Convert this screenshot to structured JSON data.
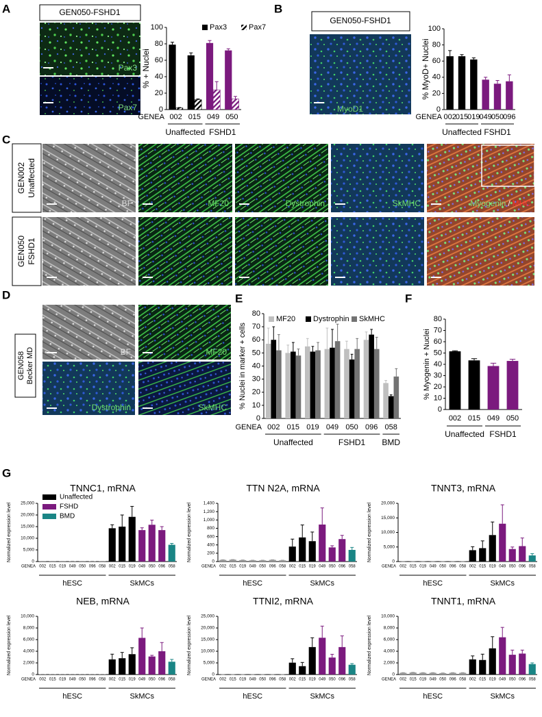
{
  "panels": {
    "A": {
      "letter": "A",
      "title": "GEN050-FSHD1",
      "images": [
        "Pax3",
        "Pax7"
      ]
    },
    "B": {
      "letter": "B",
      "title": "GEN050-FSHD1",
      "images": [
        "MyoD1"
      ]
    },
    "C": {
      "letter": "C",
      "rows": [
        [
          "GEN002",
          "Unaffected"
        ],
        [
          "GEN050",
          "FSHD1"
        ]
      ],
      "columns": [
        "BF",
        "MF20",
        "Dystrophin",
        "SkMHC"
      ],
      "merge_label": [
        "Myogenin",
        "/",
        "MHC"
      ]
    },
    "D": {
      "letter": "D",
      "row_label": [
        "GEN058",
        "Becker MD"
      ],
      "images": [
        "BF",
        "MF20",
        "Dystrophin",
        "SkMHC"
      ]
    },
    "E": {
      "letter": "E"
    },
    "F": {
      "letter": "F"
    },
    "G": {
      "letter": "G"
    }
  },
  "chart_data": [
    {
      "type": "bar",
      "ylabel": "% + Nuclei",
      "xlabel": "GENEA",
      "categories": [
        "002",
        "015",
        "049",
        "050"
      ],
      "series": [
        {
          "name": "Pax3",
          "values": [
            79,
            66,
            81,
            72
          ],
          "errors": [
            3,
            3,
            3,
            2
          ],
          "colors": [
            "#000000",
            "#000000",
            "#7b1a7e",
            "#7b1a7e"
          ]
        },
        {
          "name": "Pax7",
          "pattern": "hatch",
          "values": [
            2,
            12,
            24,
            13
          ],
          "errors": [
            0.5,
            1,
            10,
            3
          ],
          "colors": [
            "#000000",
            "#000000",
            "#7b1a7e",
            "#7b1a7e"
          ]
        }
      ],
      "ylim": [
        0,
        100
      ],
      "yticks": [
        0,
        20,
        40,
        60,
        80,
        100
      ],
      "groups": [
        "Unaffected",
        "FSHD1"
      ]
    },
    {
      "type": "bar",
      "ylabel": "% MyoD+ Nuclei",
      "xlabel": "GENEA",
      "categories": [
        "002",
        "015",
        "019",
        "049",
        "050",
        "096"
      ],
      "series": [
        {
          "values": [
            66,
            66,
            62,
            37,
            32,
            35
          ],
          "errors": [
            7,
            2,
            2,
            3,
            4,
            8
          ],
          "colors": [
            "#000000",
            "#000000",
            "#000000",
            "#7b1a7e",
            "#7b1a7e",
            "#7b1a7e"
          ]
        }
      ],
      "ylim": [
        0,
        100
      ],
      "yticks": [
        0,
        20,
        40,
        60,
        80,
        100
      ],
      "groups": [
        "Unaffected",
        "FSHD1"
      ]
    },
    {
      "type": "bar",
      "ylabel": "% Nuclei in marker + cells",
      "xlabel": "GENEA",
      "categories": [
        "002",
        "015",
        "019",
        "049",
        "050",
        "096",
        "058"
      ],
      "series": [
        {
          "name": "MF20",
          "color": "#bfbfbf",
          "values": [
            57,
            50,
            55,
            53,
            53,
            60,
            27
          ],
          "errors": [
            12,
            6,
            6,
            16,
            6,
            6,
            2
          ]
        },
        {
          "name": "Dystrophin",
          "color": "#000000",
          "values": [
            60,
            51,
            51,
            54,
            45,
            64,
            17
          ],
          "errors": [
            10,
            7,
            4,
            14,
            4,
            4,
            1
          ]
        },
        {
          "name": "SkMHC",
          "color": "#737373",
          "values": [
            52,
            48,
            52,
            59,
            53,
            53,
            32
          ],
          "errors": [
            12,
            5,
            6,
            13,
            8,
            9,
            6
          ]
        }
      ],
      "ylim": [
        0,
        80
      ],
      "yticks": [
        0,
        10,
        20,
        30,
        40,
        50,
        60,
        70,
        80
      ],
      "groups": [
        "Unaffected",
        "FSHD1",
        "BMD"
      ]
    },
    {
      "type": "bar",
      "ylabel": "% Myogenin + Nuclei",
      "categories": [
        "002",
        "015",
        "049",
        "050"
      ],
      "series": [
        {
          "values": [
            51.5,
            43.5,
            38.5,
            43
          ],
          "errors": [
            0.5,
            1.5,
            2.5,
            1.5
          ],
          "colors": [
            "#000000",
            "#000000",
            "#7b1a7e",
            "#7b1a7e"
          ]
        }
      ],
      "ylim": [
        0,
        80
      ],
      "yticks": [
        0,
        10,
        20,
        30,
        40,
        50,
        60,
        70,
        80
      ],
      "groups": [
        "Unaffected",
        "FSHD1"
      ]
    },
    {
      "type": "bar",
      "title": "TNNC1, mRNA",
      "ylabel": "Normalized expression level",
      "xlabel": "GENEA",
      "categories": [
        "002",
        "015",
        "019",
        "049",
        "050",
        "096",
        "058",
        "002",
        "015",
        "019",
        "049",
        "050",
        "096",
        "058"
      ],
      "series": [
        {
          "values": [
            100,
            100,
            100,
            150,
            100,
            150,
            100,
            14300,
            15000,
            19200,
            13500,
            15800,
            13500,
            7200
          ],
          "errors": [
            20,
            20,
            20,
            20,
            20,
            20,
            20,
            1500,
            5000,
            4500,
            1000,
            2000,
            1500,
            600
          ],
          "colors": [
            "#999999",
            "#999999",
            "#999999",
            "#999999",
            "#999999",
            "#999999",
            "#999999",
            "#000000",
            "#000000",
            "#000000",
            "#7b1a7e",
            "#7b1a7e",
            "#7b1a7e",
            "#1a8585"
          ]
        }
      ],
      "ylim": [
        0,
        25000
      ],
      "yticks": [
        0,
        {
          "value": 5000,
          "label": "5,000"
        },
        {
          "value": 10000,
          "label": "10,000"
        },
        {
          "value": 15000,
          "label": "15,000"
        },
        {
          "value": 20000,
          "label": "20,000"
        },
        {
          "value": 25000,
          "label": "25,000"
        }
      ],
      "groups": [
        "hESC",
        "SkMCs"
      ],
      "legend": [
        {
          "name": "Unaffected",
          "color": "#000000"
        },
        {
          "name": "FSHD",
          "color": "#7b1a7e"
        },
        {
          "name": "BMD",
          "color": "#1a8585"
        }
      ]
    },
    {
      "type": "bar",
      "title": "TTN N2A, mRNA",
      "ylabel": "Normalized expression level",
      "xlabel": "GENEA",
      "categories": [
        "002",
        "015",
        "019",
        "049",
        "050",
        "096",
        "058",
        "002",
        "015",
        "019",
        "049",
        "050",
        "096",
        "058"
      ],
      "series": [
        {
          "values": [
            40,
            45,
            35,
            30,
            30,
            40,
            30,
            360,
            580,
            490,
            890,
            340,
            540,
            280
          ],
          "errors": [
            3,
            3,
            3,
            3,
            3,
            3,
            3,
            180,
            300,
            220,
            400,
            40,
            90,
            60
          ],
          "colors": [
            "#999999",
            "#999999",
            "#999999",
            "#999999",
            "#999999",
            "#999999",
            "#999999",
            "#000000",
            "#000000",
            "#000000",
            "#7b1a7e",
            "#7b1a7e",
            "#7b1a7e",
            "#1a8585"
          ]
        }
      ],
      "ylim": [
        0,
        1400
      ],
      "yticks": [
        0,
        200,
        400,
        600,
        800,
        {
          "value": 1000,
          "label": "1,000"
        },
        {
          "value": 1200,
          "label": "1,200"
        },
        {
          "value": 1400,
          "label": "1,400"
        }
      ],
      "groups": [
        "hESC",
        "SkMCs"
      ]
    },
    {
      "type": "bar",
      "title": "TNNT3, mRNA",
      "ylabel": "Normalized expression level",
      "xlabel": "GENEA",
      "categories": [
        "002",
        "015",
        "019",
        "049",
        "050",
        "096",
        "058",
        "002",
        "015",
        "019",
        "049",
        "050",
        "096",
        "058"
      ],
      "series": [
        {
          "values": [
            50,
            50,
            50,
            50,
            50,
            50,
            50,
            3900,
            4600,
            9100,
            13000,
            4300,
            5300,
            2100
          ],
          "errors": [
            10,
            10,
            10,
            10,
            10,
            10,
            10,
            1200,
            2500,
            4500,
            6500,
            700,
            2800,
            600
          ],
          "colors": [
            "#999999",
            "#999999",
            "#999999",
            "#999999",
            "#999999",
            "#999999",
            "#999999",
            "#000000",
            "#000000",
            "#000000",
            "#7b1a7e",
            "#7b1a7e",
            "#7b1a7e",
            "#1a8585"
          ]
        }
      ],
      "ylim": [
        0,
        20000
      ],
      "yticks": [
        0,
        {
          "value": 5000,
          "label": "5,000"
        },
        {
          "value": 10000,
          "label": "10,000"
        },
        {
          "value": 15000,
          "label": "15,000"
        },
        {
          "value": 20000,
          "label": "20,000"
        }
      ],
      "groups": [
        "hESC",
        "SkMCs"
      ]
    },
    {
      "type": "bar",
      "title": "NEB, mRNA",
      "ylabel": "Normalized expression level",
      "xlabel": "GENEA",
      "categories": [
        "002",
        "015",
        "019",
        "049",
        "050",
        "096",
        "058",
        "002",
        "015",
        "019",
        "049",
        "050",
        "096",
        "058"
      ],
      "series": [
        {
          "values": [
            50,
            50,
            50,
            50,
            50,
            50,
            50,
            2600,
            2800,
            3500,
            6300,
            3100,
            4000,
            2200
          ],
          "errors": [
            10,
            10,
            10,
            10,
            10,
            10,
            10,
            900,
            1000,
            1100,
            1700,
            200,
            1500,
            400
          ],
          "colors": [
            "#999999",
            "#999999",
            "#999999",
            "#999999",
            "#999999",
            "#999999",
            "#999999",
            "#000000",
            "#000000",
            "#000000",
            "#7b1a7e",
            "#7b1a7e",
            "#7b1a7e",
            "#1a8585"
          ]
        }
      ],
      "ylim": [
        0,
        10000
      ],
      "yticks": [
        0,
        {
          "value": 2000,
          "label": "2,000"
        },
        {
          "value": 4000,
          "label": "4,000"
        },
        {
          "value": 6000,
          "label": "6,000"
        },
        {
          "value": 8000,
          "label": "8,000"
        },
        {
          "value": 10000,
          "label": "10,000"
        }
      ],
      "groups": [
        "hESC",
        "SkMCs"
      ]
    },
    {
      "type": "bar",
      "title": "TTNI2, mRNA",
      "ylabel": "Normalized expression level",
      "xlabel": "GENEA",
      "categories": [
        "002",
        "015",
        "019",
        "049",
        "050",
        "096",
        "058",
        "002",
        "015",
        "019",
        "049",
        "050",
        "096",
        "058"
      ],
      "series": [
        {
          "values": [
            50,
            50,
            50,
            50,
            50,
            50,
            50,
            5100,
            3600,
            11800,
            15800,
            7300,
            11800,
            4200
          ],
          "errors": [
            10,
            10,
            10,
            10,
            10,
            10,
            10,
            1700,
            1600,
            4000,
            5000,
            1400,
            4800,
            500
          ],
          "colors": [
            "#999999",
            "#999999",
            "#999999",
            "#999999",
            "#999999",
            "#999999",
            "#999999",
            "#000000",
            "#000000",
            "#000000",
            "#7b1a7e",
            "#7b1a7e",
            "#7b1a7e",
            "#1a8585"
          ]
        }
      ],
      "ylim": [
        0,
        25000
      ],
      "yticks": [
        0,
        {
          "value": 5000,
          "label": "5,000"
        },
        {
          "value": 10000,
          "label": "10,000"
        },
        {
          "value": 15000,
          "label": "15,000"
        },
        {
          "value": 20000,
          "label": "20,000"
        },
        {
          "value": 25000,
          "label": "25,000"
        }
      ],
      "groups": [
        "hESC",
        "SkMCs"
      ]
    },
    {
      "type": "bar",
      "title": "TNNT1, mRNA",
      "ylabel": "Normalized expression level",
      "xlabel": "GENEA",
      "categories": [
        "002",
        "015",
        "019",
        "049",
        "050",
        "096",
        "058",
        "002",
        "015",
        "019",
        "049",
        "050",
        "096",
        "058"
      ],
      "series": [
        {
          "values": [
            300,
            350,
            300,
            300,
            250,
            300,
            300,
            2600,
            2500,
            4500,
            6400,
            3400,
            3600,
            1800
          ],
          "errors": [
            30,
            30,
            30,
            30,
            30,
            30,
            30,
            600,
            1000,
            2000,
            1700,
            800,
            600,
            200
          ],
          "colors": [
            "#999999",
            "#999999",
            "#999999",
            "#999999",
            "#999999",
            "#999999",
            "#999999",
            "#000000",
            "#000000",
            "#000000",
            "#7b1a7e",
            "#7b1a7e",
            "#7b1a7e",
            "#1a8585"
          ]
        }
      ],
      "ylim": [
        0,
        10000
      ],
      "yticks": [
        0,
        {
          "value": 2000,
          "label": "2,000"
        },
        {
          "value": 4000,
          "label": "4,000"
        },
        {
          "value": 6000,
          "label": "6,000"
        },
        {
          "value": 8000,
          "label": "8,000"
        },
        {
          "value": 10000,
          "label": "10,000"
        }
      ],
      "groups": [
        "hESC",
        "SkMCs"
      ]
    }
  ]
}
